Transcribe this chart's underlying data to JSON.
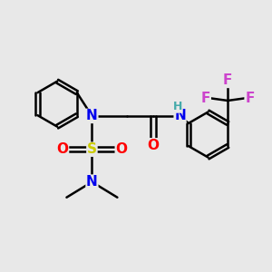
{
  "background_color": "#e8e8e8",
  "atom_colors": {
    "C": "#000000",
    "N": "#0000ee",
    "O": "#ff0000",
    "S": "#cccc00",
    "F": "#cc44cc",
    "H": "#44aaaa"
  },
  "bond_color": "#000000",
  "bond_width": 1.8,
  "figsize": [
    3.0,
    3.0
  ],
  "dpi": 100,
  "font_size_atom": 11,
  "font_size_h": 9
}
